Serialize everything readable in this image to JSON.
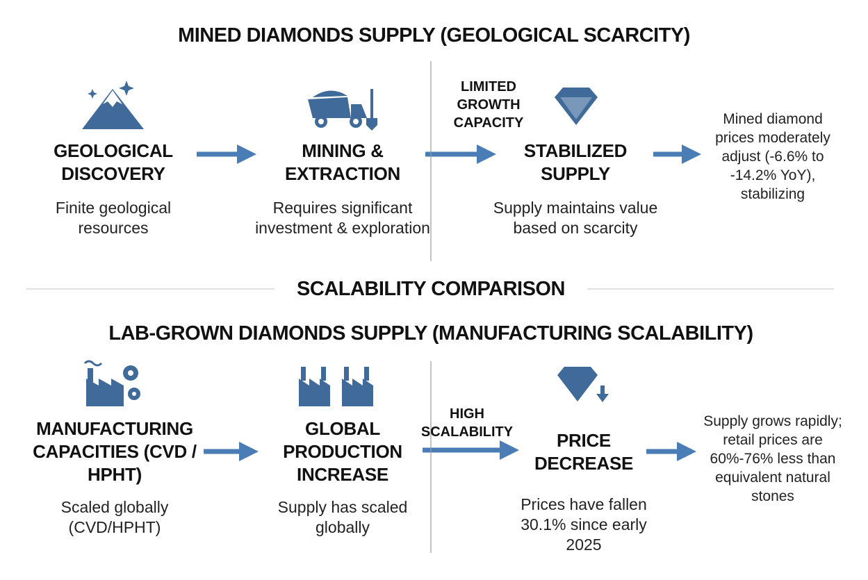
{
  "mined": {
    "title": "MINED DIAMONDS SUPPLY (GEOLOGICAL SCARCITY)",
    "steps": [
      {
        "title": "GEOLOGICAL DISCOVERY",
        "description": "Finite geological resources"
      },
      {
        "title": "MINING & EXTRACTION",
        "description": "Requires significant investment & exploration"
      },
      {
        "title": "STABILIZED SUPPLY",
        "description": "Supply maintains value based on scarcity"
      }
    ],
    "arrow_label": "LIMITED GROWTH CAPACITY",
    "outcome": "Mined diamond prices moderately adjust (-6.6% to -14.2% YoY), stabilizing"
  },
  "divider": "SCALABILITY COMPARISON",
  "lab": {
    "title": "LAB-GROWN DIAMONDS SUPPLY (MANUFACTURING SCALABILITY)",
    "steps": [
      {
        "title": "MANUFACTURING CAPACITIES (CVD / HPHT)",
        "description": "Scaled globally (CVD/HPHT)"
      },
      {
        "title": "GLOBAL PRODUCTION INCREASE",
        "description": "Supply has scaled globally"
      },
      {
        "title": "PRICE DECREASE",
        "description": "Prices have fallen 30.1% since early 2025"
      }
    ],
    "arrow_label": "HIGH SCALABILITY",
    "outcome": "Supply grows rapidly; retail prices are 60%-76% less than equivalent natural stones"
  }
}
